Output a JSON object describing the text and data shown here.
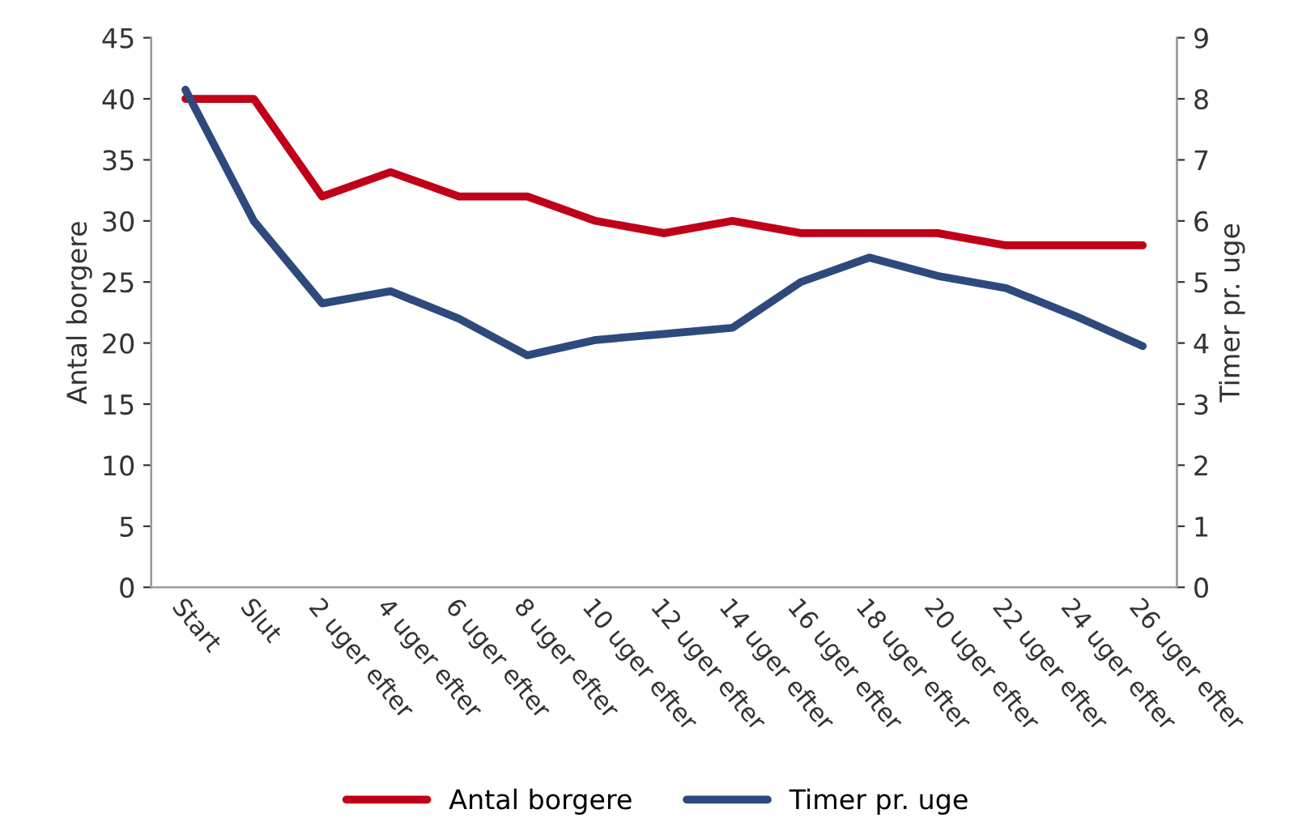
{
  "chart_data": {
    "type": "line",
    "categories": [
      "Start",
      "Slut",
      "2 uger efter",
      "4 uger efter",
      "6 uger efter",
      "8 uger efter",
      "10 uger efter",
      "12 uger efter",
      "14 uger efter",
      "16 uger efter",
      "18 uger efter",
      "20 uger efter",
      "22 uger efter",
      "24 uger efter",
      "26 uger efter"
    ],
    "series": [
      {
        "name": "Antal borgere",
        "color": "#c00018",
        "values": [
          40,
          40,
          32,
          34,
          32,
          32,
          30,
          29,
          30,
          29,
          29,
          29,
          28,
          28,
          28
        ]
      },
      {
        "name": "Timer pr. uge",
        "color": "#2e4a7d",
        "axis": "y2",
        "values": [
          8.15,
          6.0,
          4.65,
          4.85,
          4.4,
          3.8,
          4.05,
          4.15,
          4.25,
          5.0,
          5.4,
          5.1,
          4.9,
          4.45,
          3.95
        ]
      }
    ],
    "ylabel": "Antal borgere",
    "y2label": "Timer pr. uge",
    "ylim": [
      0,
      45
    ],
    "yticks": [
      0,
      5,
      10,
      15,
      20,
      25,
      30,
      35,
      40,
      45
    ],
    "y2lim": [
      0,
      9
    ],
    "y2ticks": [
      0,
      1,
      2,
      3,
      4,
      5,
      6,
      7,
      8,
      9
    ],
    "grid": false,
    "legend": "bottom",
    "line_style": "solid",
    "marker": "none"
  }
}
